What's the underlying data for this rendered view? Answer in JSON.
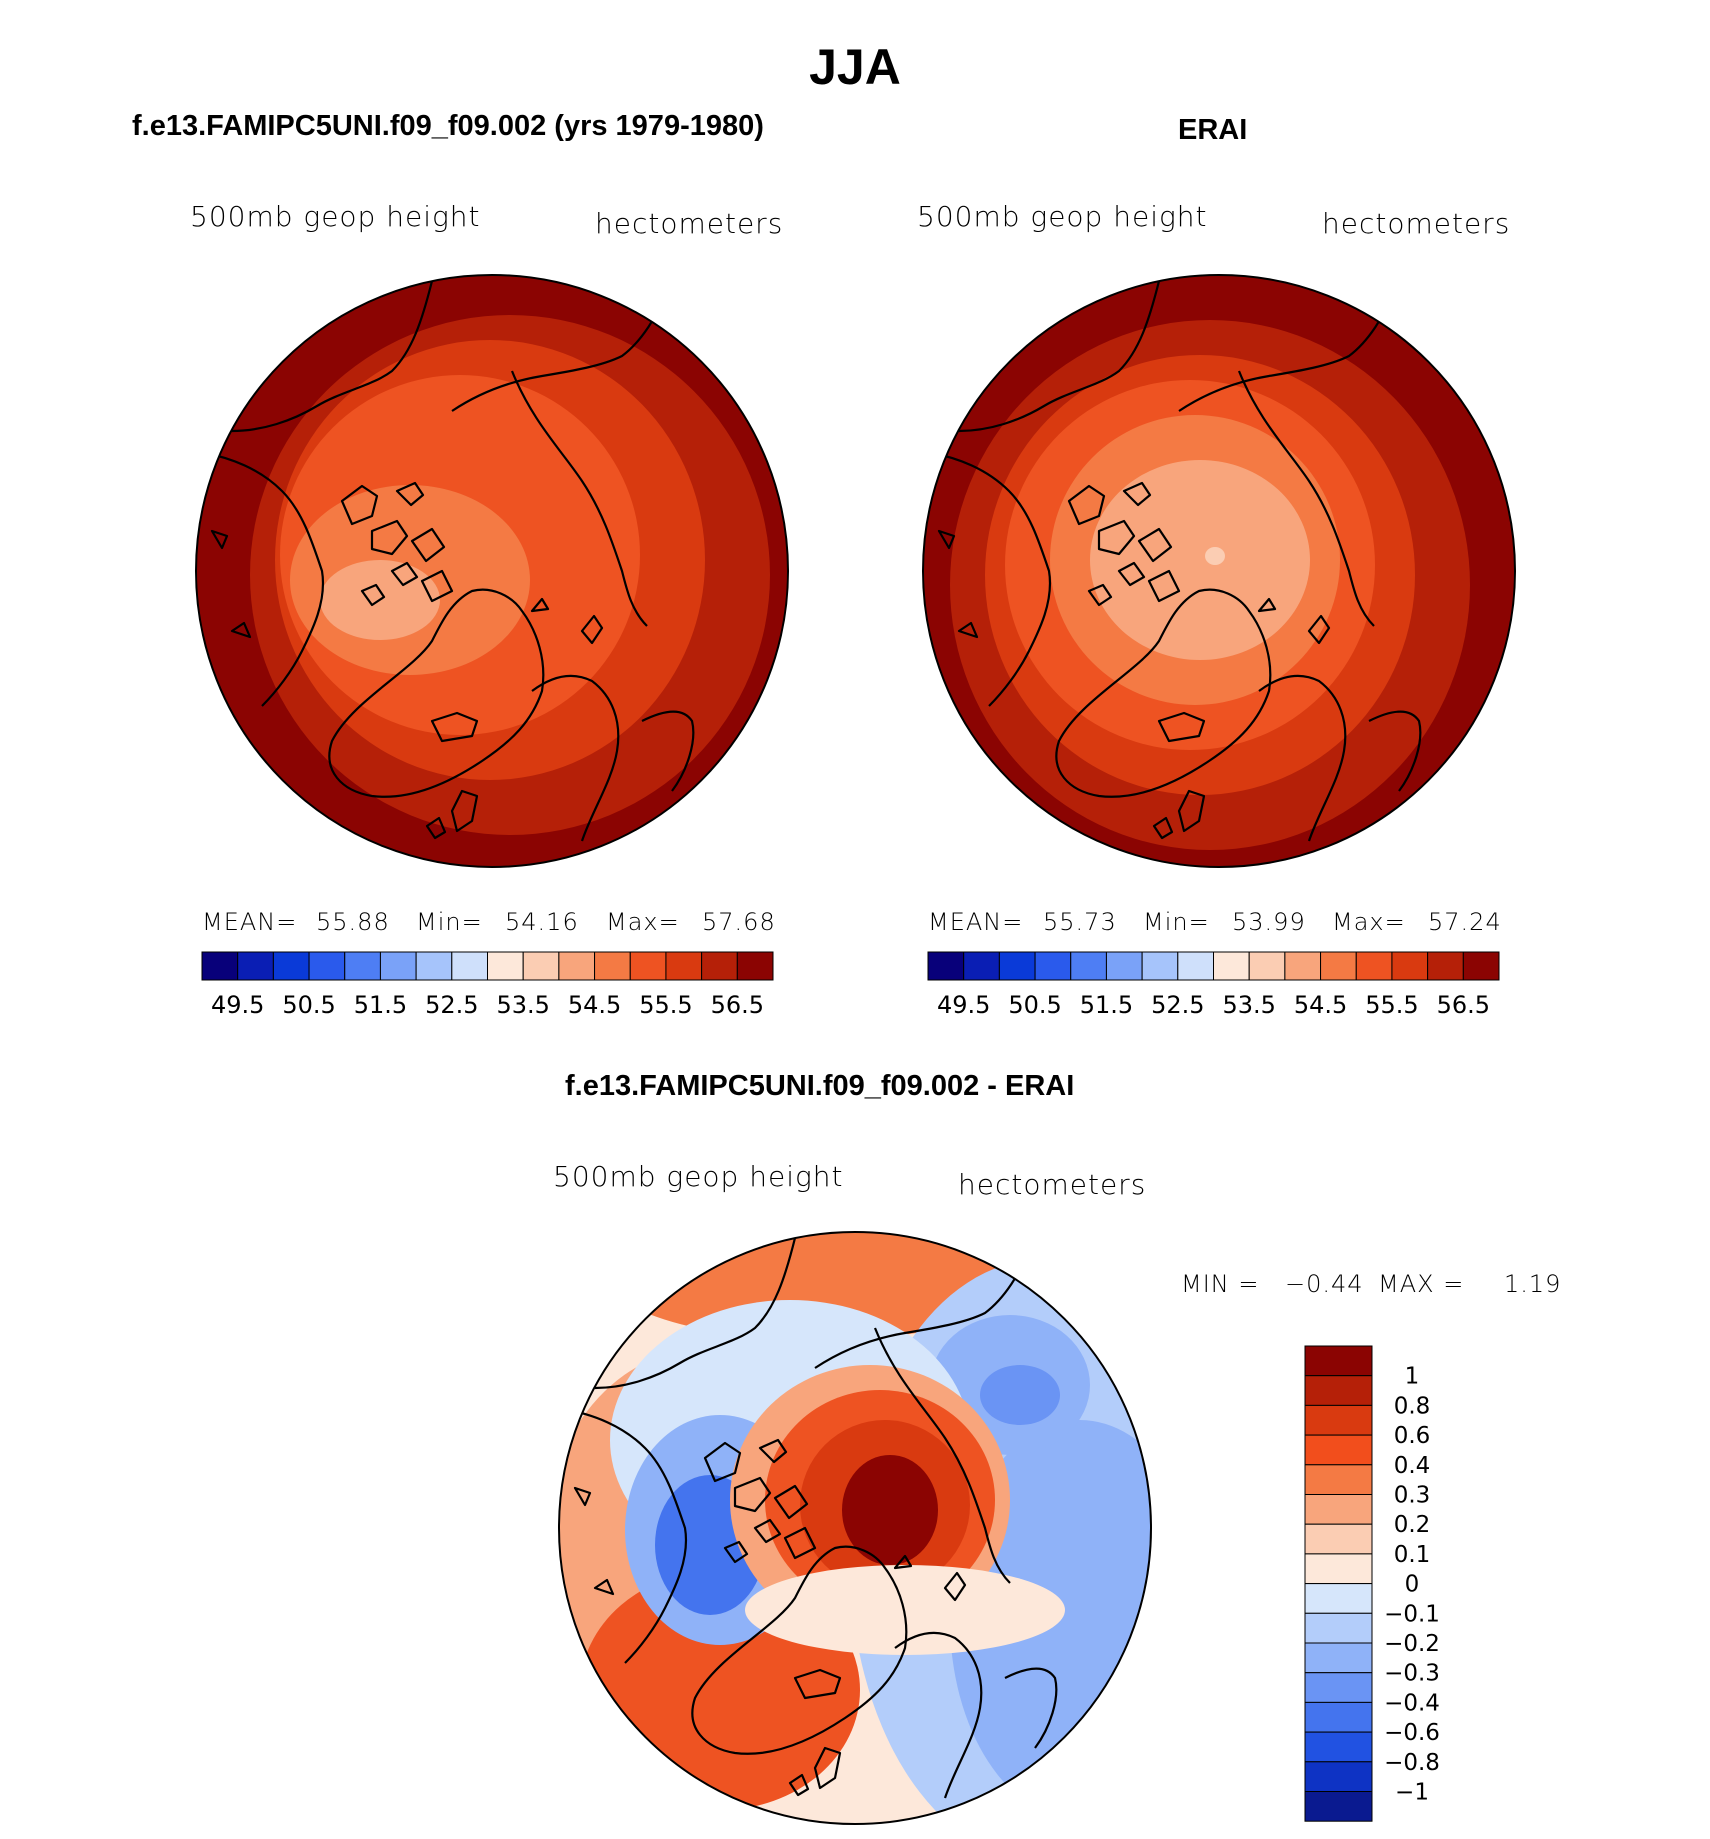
{
  "title": "JJA",
  "chart_data": [
    {
      "type": "heatmap",
      "projection": "north-polar-stereographic",
      "title": "f.e13.FAMIPC5UNI.f09_f09.002 (yrs 1979-1980)",
      "left_label": "500mb  geop  height",
      "right_label": "hectometers",
      "stats": {
        "mean_label": "MEAN=",
        "mean": "55.88",
        "min_label": "Min=",
        "min": "54.16",
        "max_label": "Max=",
        "max": "57.68"
      },
      "colorbar": {
        "orientation": "horizontal",
        "levels": [
          49.5,
          49.75,
          50,
          50.25,
          50.5,
          50.75,
          51,
          51.25,
          51.5,
          51.75,
          52,
          52.25,
          52.5,
          52.75,
          53,
          53.25,
          53.5,
          53.75,
          54,
          54.25,
          54.5,
          54.75,
          55,
          55.25,
          55.5,
          55.75,
          56,
          56.25,
          56.5
        ],
        "tick_labels": [
          "49.5",
          "50.5",
          "51.5",
          "52.5",
          "53.5",
          "54.5",
          "55.5",
          "56.5"
        ],
        "colors": [
          "#08007a",
          "#0a1eb4",
          "#0a3ad8",
          "#2a5aec",
          "#4e7ef4",
          "#7aa2f8",
          "#a6c4fb",
          "#cfe0fb",
          "#fde8da",
          "#fbcdb3",
          "#f8a57c",
          "#f47a44",
          "#ee5322",
          "#d93a10",
          "#b52008",
          "#8b0402"
        ]
      },
      "field_levels_present": [
        54.0,
        54.5,
        55.0,
        55.5,
        56.0,
        56.5
      ]
    },
    {
      "type": "heatmap",
      "projection": "north-polar-stereographic",
      "title": "ERAI",
      "left_label": "500mb  geop  height",
      "right_label": "hectometers",
      "stats": {
        "mean_label": "MEAN=",
        "mean": "55.73",
        "min_label": "Min=",
        "min": "53.99",
        "max_label": "Max=",
        "max": "57.24"
      },
      "colorbar": {
        "orientation": "horizontal",
        "levels": [
          49.5,
          49.75,
          50,
          50.25,
          50.5,
          50.75,
          51,
          51.25,
          51.5,
          51.75,
          52,
          52.25,
          52.5,
          52.75,
          53,
          53.25,
          53.5,
          53.75,
          54,
          54.25,
          54.5,
          54.75,
          55,
          55.25,
          55.5,
          55.75,
          56,
          56.25,
          56.5
        ],
        "tick_labels": [
          "49.5",
          "50.5",
          "51.5",
          "52.5",
          "53.5",
          "54.5",
          "55.5",
          "56.5"
        ],
        "colors": [
          "#08007a",
          "#0a1eb4",
          "#0a3ad8",
          "#2a5aec",
          "#4e7ef4",
          "#7aa2f8",
          "#a6c4fb",
          "#cfe0fb",
          "#fde8da",
          "#fbcdb3",
          "#f8a57c",
          "#f47a44",
          "#ee5322",
          "#d93a10",
          "#b52008",
          "#8b0402"
        ]
      },
      "field_levels_present": [
        53.5,
        54.0,
        54.5,
        55.0,
        55.5,
        56.0,
        56.5
      ]
    },
    {
      "type": "heatmap",
      "projection": "north-polar-stereographic",
      "title": "f.e13.FAMIPC5UNI.f09_f09.002 - ERAI",
      "left_label": "500mb  geop  height",
      "right_label": "hectometers",
      "stats": {
        "min_label": "MIN =",
        "min": "−0.44",
        "max_label": "MAX =",
        "max": "1.19"
      },
      "colorbar": {
        "orientation": "vertical",
        "levels": [
          -1,
          -0.8,
          -0.6,
          -0.4,
          -0.3,
          -0.2,
          -0.1,
          0,
          0.1,
          0.2,
          0.3,
          0.4,
          0.6,
          0.8,
          1
        ],
        "tick_labels": [
          "1",
          "0.8",
          "0.6",
          "0.4",
          "0.3",
          "0.2",
          "0.1",
          "0",
          "−0.1",
          "−0.2",
          "−0.3",
          "−0.4",
          "−0.6",
          "−0.8",
          "−1"
        ],
        "colors": [
          "#8b0402",
          "#b52008",
          "#d93a10",
          "#f24e1c",
          "#f47a44",
          "#f8a57c",
          "#fbcdb3",
          "#fde8da",
          "#d6e6fb",
          "#b3cdfa",
          "#8fb2f8",
          "#6a94f4",
          "#4474ee",
          "#2152e2",
          "#0e33c4",
          "#0a1a90"
        ]
      }
    }
  ]
}
